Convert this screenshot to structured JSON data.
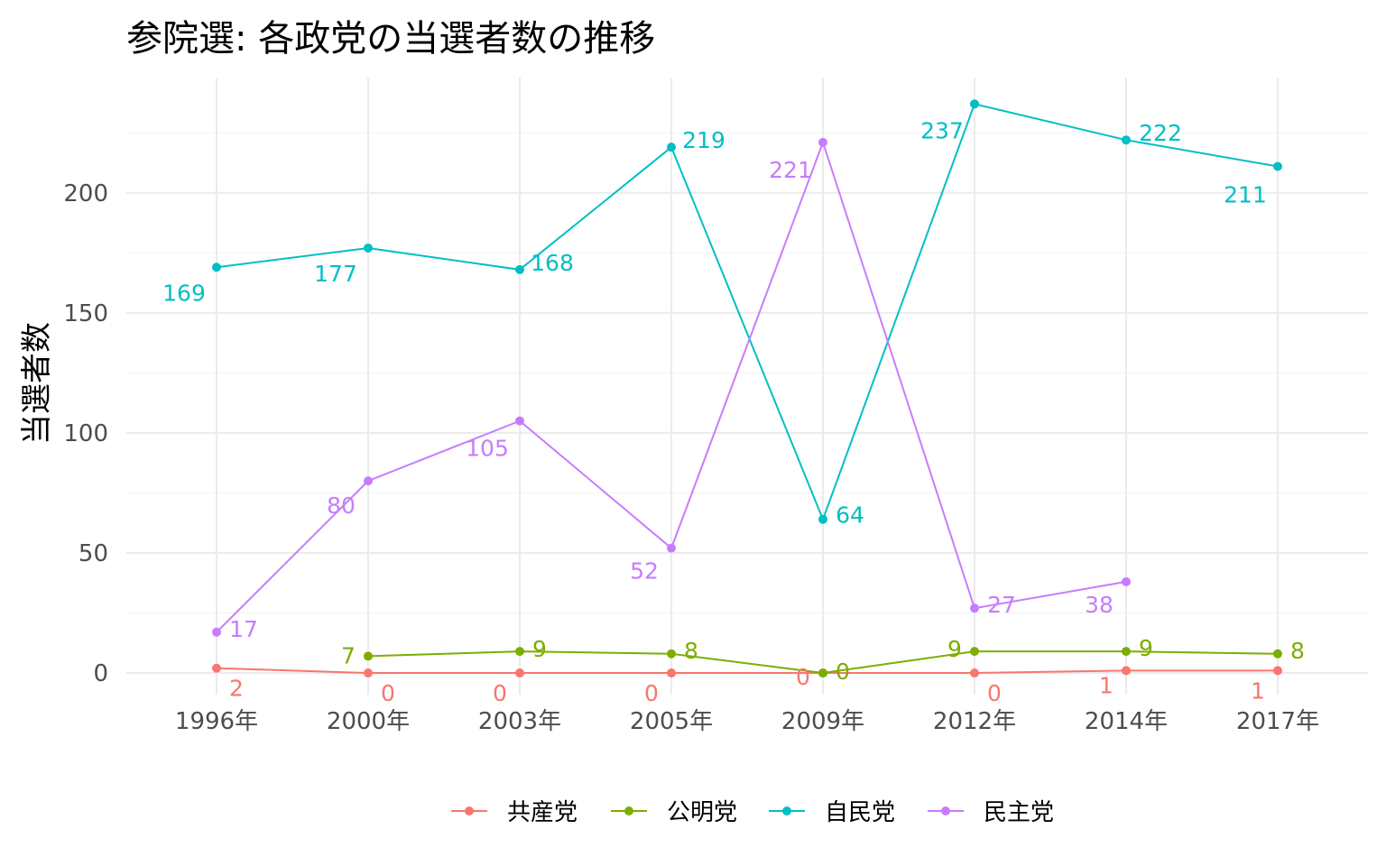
{
  "chart_data": {
    "type": "line",
    "title": "参院選: 各政党の当選者数の推移",
    "xlabel": "",
    "ylabel": "当選者数",
    "categories": [
      "1996年",
      "2000年",
      "2003年",
      "2005年",
      "2009年",
      "2012年",
      "2014年",
      "2017年"
    ],
    "ylim": [
      -9,
      248
    ],
    "yticks": [
      0,
      50,
      100,
      150,
      200
    ],
    "grid": true,
    "legend_position": "bottom",
    "series": [
      {
        "name": "共産党",
        "color": "#F8766D",
        "values": [
          2,
          0,
          0,
          0,
          0,
          0,
          1,
          1
        ],
        "labels": [
          "2",
          "0",
          "0",
          "0",
          "0",
          "0",
          "1",
          "1"
        ]
      },
      {
        "name": "公明党",
        "color": "#7CAE00",
        "values": [
          null,
          7,
          9,
          8,
          0,
          9,
          9,
          8
        ],
        "labels": [
          "",
          "7",
          "9",
          "8",
          "0",
          "9",
          "9",
          "8"
        ]
      },
      {
        "name": "自民党",
        "color": "#00BFC4",
        "values": [
          169,
          177,
          168,
          219,
          64,
          237,
          222,
          211
        ],
        "labels": [
          "169",
          "177",
          "168",
          "219",
          "64",
          "237",
          "222",
          "211"
        ]
      },
      {
        "name": "民主党",
        "color": "#C77CFF",
        "values": [
          17,
          80,
          105,
          52,
          221,
          27,
          38,
          null
        ],
        "labels": [
          "17",
          "80",
          "105",
          "52",
          "221",
          "27",
          "38",
          ""
        ]
      }
    ]
  }
}
